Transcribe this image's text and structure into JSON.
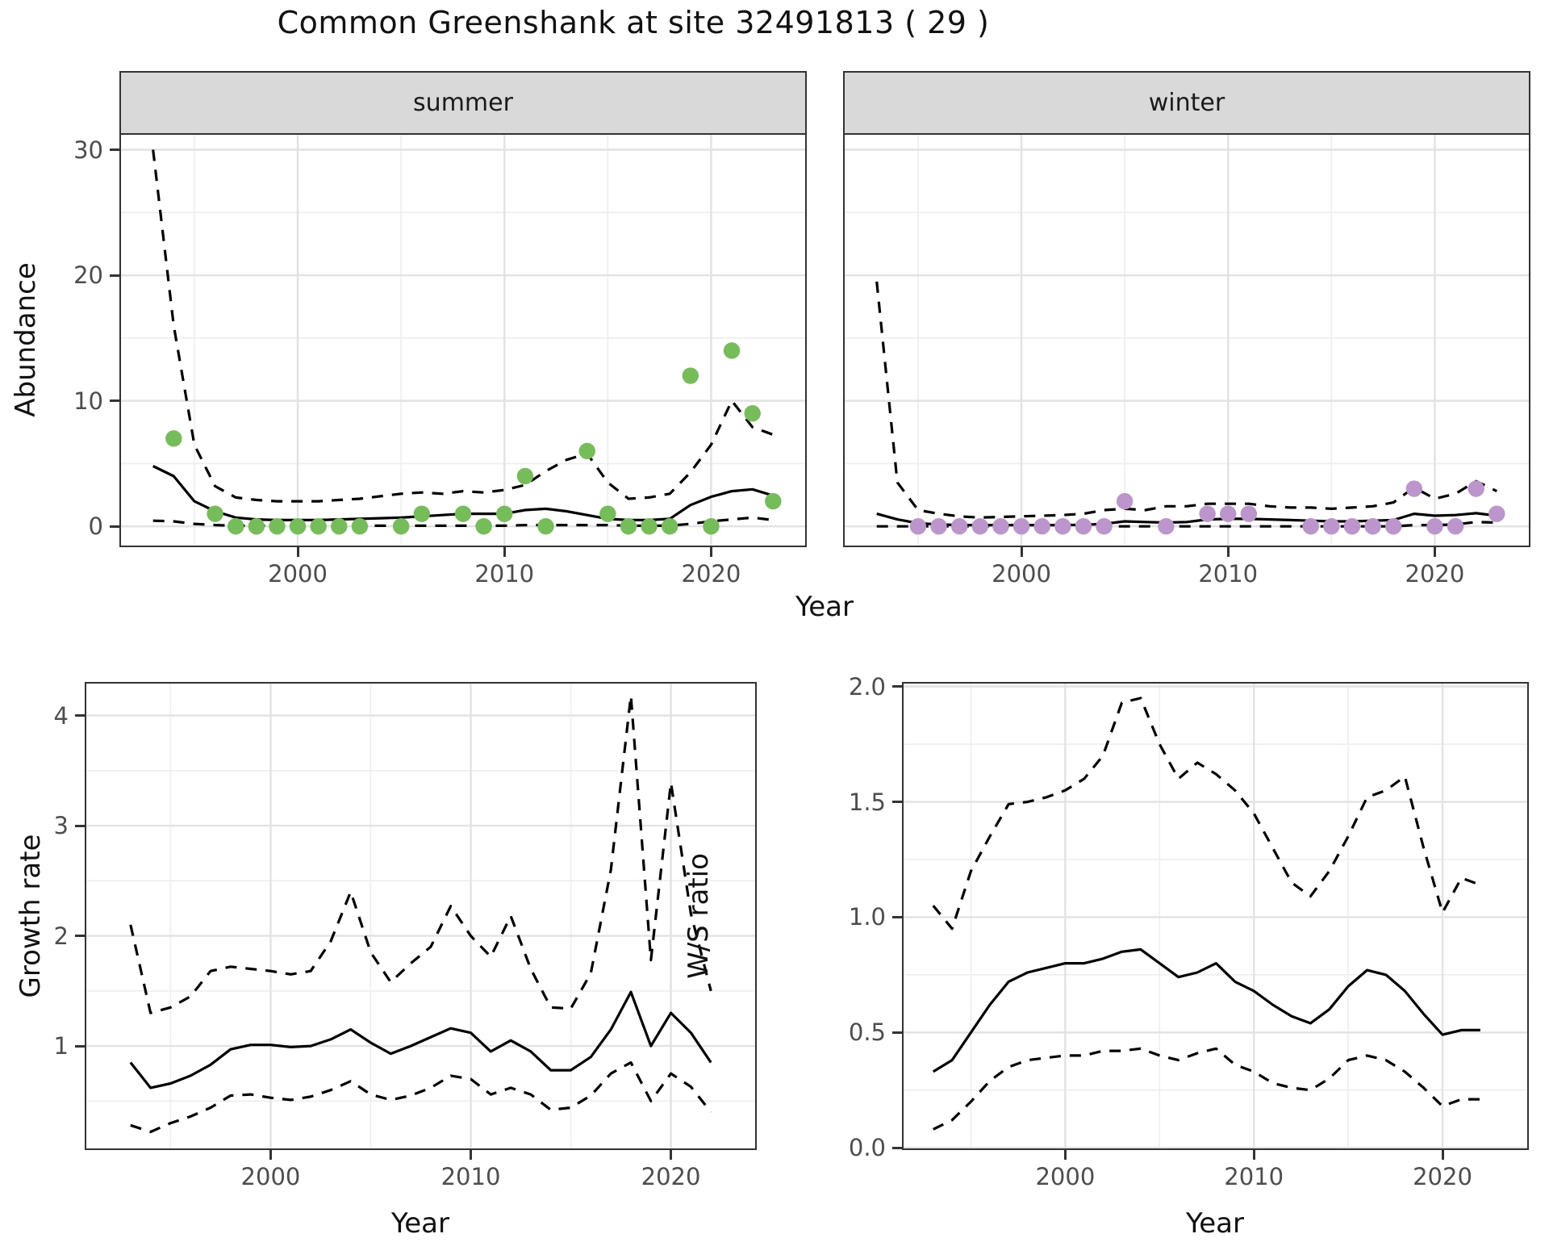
{
  "title": "Common Greenshank at site 32491813 ( 29 )",
  "colors": {
    "summer_point": "#75bd59",
    "winter_point": "#bb95cb",
    "line": "#000000",
    "grid_major": "#e2e2e2",
    "grid_minor": "#eeeeee",
    "strip_bg": "#d9d9d9",
    "panel_border": "#333333",
    "axis_text": "#4d4d4d",
    "title_text": "#111111"
  },
  "top": {
    "ylabel": "Abundance",
    "xlabel": "Year",
    "facets": {
      "summer": "summer",
      "winter": "winter"
    }
  },
  "bottom_left": {
    "ylabel": "Growth rate",
    "xlabel": "Year"
  },
  "bottom_right": {
    "ylabel": "W/S ratio",
    "xlabel": "Year"
  },
  "chart_data": [
    {
      "id": "abundance-summer",
      "type": "line",
      "facet": "summer",
      "xlabel": "Year",
      "ylabel": "Abundance",
      "legend_position": "none",
      "grid": true,
      "xlim": [
        1991.45,
        2024.55
      ],
      "ylim": [
        -1.53,
        31.19
      ],
      "xticks": [
        2000,
        2010,
        2020
      ],
      "xticks_minor": [
        1995,
        2005,
        2015
      ],
      "yticks": [
        0,
        10,
        20,
        30
      ],
      "yticks_minor": [
        5,
        15,
        25
      ],
      "show_y_axis": true,
      "show_x_tick_labels": true,
      "years": [
        1993,
        1994,
        1995,
        1996,
        1997,
        1998,
        1999,
        2000,
        2001,
        2002,
        2003,
        2004,
        2005,
        2006,
        2007,
        2008,
        2009,
        2010,
        2011,
        2012,
        2013,
        2014,
        2015,
        2016,
        2017,
        2018,
        2019,
        2020,
        2021,
        2022,
        2023
      ],
      "series": [
        {
          "name": "mean",
          "style": "solid",
          "values": [
            4.8,
            4.0,
            2.0,
            1.2,
            0.7,
            0.55,
            0.5,
            0.5,
            0.5,
            0.55,
            0.6,
            0.65,
            0.7,
            0.8,
            0.9,
            1.0,
            1.0,
            1.0,
            1.3,
            1.4,
            1.2,
            0.9,
            0.6,
            0.5,
            0.5,
            0.6,
            1.7,
            2.35,
            2.8,
            2.95,
            2.45
          ]
        },
        {
          "name": "upper95",
          "style": "dashed",
          "values": [
            30,
            16,
            6.5,
            3.2,
            2.3,
            2.1,
            2.0,
            2.0,
            2.0,
            2.1,
            2.2,
            2.4,
            2.6,
            2.7,
            2.6,
            2.8,
            2.7,
            2.9,
            3.3,
            4.4,
            5.3,
            5.8,
            3.5,
            2.2,
            2.3,
            2.6,
            4.3,
            6.5,
            10.0,
            7.9,
            7.3
          ]
        },
        {
          "name": "lower95",
          "style": "dashed",
          "values": [
            0.45,
            0.4,
            0.2,
            0.1,
            0.05,
            0.05,
            0.05,
            0.05,
            0.05,
            0.05,
            0.05,
            0.05,
            0.05,
            0.05,
            0.05,
            0.05,
            0.05,
            0.05,
            0.1,
            0.1,
            0.1,
            0.1,
            0.1,
            0.05,
            0.05,
            0.05,
            0.2,
            0.4,
            0.55,
            0.7,
            0.5
          ]
        }
      ],
      "points": {
        "name": "observed-counts-summer",
        "color": "#75bd59",
        "data": [
          [
            1994,
            7
          ],
          [
            1996,
            1
          ],
          [
            1997,
            0
          ],
          [
            1998,
            0
          ],
          [
            1999,
            0
          ],
          [
            2000,
            0
          ],
          [
            2001,
            0
          ],
          [
            2002,
            0
          ],
          [
            2003,
            0
          ],
          [
            2005,
            0
          ],
          [
            2006,
            1
          ],
          [
            2008,
            1
          ],
          [
            2009,
            0
          ],
          [
            2010,
            1
          ],
          [
            2011,
            4
          ],
          [
            2012,
            0
          ],
          [
            2014,
            6
          ],
          [
            2015,
            1
          ],
          [
            2016,
            0
          ],
          [
            2017,
            0
          ],
          [
            2018,
            0
          ],
          [
            2019,
            12
          ],
          [
            2020,
            0
          ],
          [
            2021,
            14
          ],
          [
            2022,
            9
          ],
          [
            2023,
            2
          ]
        ]
      }
    },
    {
      "id": "abundance-winter",
      "type": "line",
      "facet": "winter",
      "xlabel": "Year",
      "ylabel": "Abundance",
      "legend_position": "none",
      "grid": true,
      "xlim": [
        1991.45,
        2024.55
      ],
      "ylim": [
        -1.53,
        31.19
      ],
      "xticks": [
        2000,
        2010,
        2020
      ],
      "xticks_minor": [
        1995,
        2005,
        2015
      ],
      "yticks": [
        0,
        10,
        20,
        30
      ],
      "yticks_minor": [
        5,
        15,
        25
      ],
      "show_y_axis": false,
      "show_x_tick_labels": true,
      "years": [
        1993,
        1994,
        1995,
        1996,
        1997,
        1998,
        1999,
        2000,
        2001,
        2002,
        2003,
        2004,
        2005,
        2006,
        2007,
        2008,
        2009,
        2010,
        2011,
        2012,
        2013,
        2014,
        2015,
        2016,
        2017,
        2018,
        2019,
        2020,
        2021,
        2022,
        2023
      ],
      "series": [
        {
          "name": "mean",
          "style": "solid",
          "values": [
            1.0,
            0.55,
            0.25,
            0.15,
            0.1,
            0.1,
            0.1,
            0.1,
            0.1,
            0.1,
            0.12,
            0.2,
            0.4,
            0.35,
            0.3,
            0.35,
            0.55,
            0.6,
            0.6,
            0.55,
            0.5,
            0.45,
            0.4,
            0.4,
            0.45,
            0.5,
            1.0,
            0.85,
            0.9,
            1.05,
            0.85
          ]
        },
        {
          "name": "upper95",
          "style": "dashed",
          "values": [
            19.5,
            3.5,
            1.3,
            1.0,
            0.8,
            0.7,
            0.75,
            0.8,
            0.85,
            0.9,
            1.0,
            1.3,
            1.4,
            1.3,
            1.6,
            1.6,
            1.8,
            1.8,
            1.8,
            1.6,
            1.5,
            1.5,
            1.4,
            1.5,
            1.6,
            1.9,
            3.1,
            2.2,
            2.6,
            3.6,
            2.8
          ]
        },
        {
          "name": "lower95",
          "style": "dashed",
          "values": [
            0,
            0,
            0,
            0,
            0,
            0,
            0,
            0,
            0,
            0,
            0,
            0,
            0,
            0,
            0,
            0,
            0,
            0,
            0,
            0,
            0,
            0,
            0,
            0,
            0,
            0,
            0.1,
            0.1,
            0.15,
            0.35,
            0.3
          ]
        }
      ],
      "points": {
        "name": "observed-counts-winter",
        "color": "#bb95cb",
        "data": [
          [
            1995,
            0
          ],
          [
            1996,
            0
          ],
          [
            1997,
            0
          ],
          [
            1998,
            0
          ],
          [
            1999,
            0
          ],
          [
            2000,
            0
          ],
          [
            2001,
            0
          ],
          [
            2002,
            0
          ],
          [
            2003,
            0
          ],
          [
            2004,
            0
          ],
          [
            2005,
            2
          ],
          [
            2007,
            0
          ],
          [
            2009,
            1
          ],
          [
            2010,
            1
          ],
          [
            2011,
            1
          ],
          [
            2014,
            0
          ],
          [
            2015,
            0
          ],
          [
            2016,
            0
          ],
          [
            2017,
            0
          ],
          [
            2018,
            0
          ],
          [
            2019,
            3
          ],
          [
            2020,
            0
          ],
          [
            2021,
            0
          ],
          [
            2022,
            3
          ],
          [
            2023,
            1
          ]
        ]
      }
    },
    {
      "id": "growth-rate",
      "type": "line",
      "xlabel": "Year",
      "ylabel": "Growth rate",
      "legend_position": "none",
      "grid": true,
      "xlim": [
        1990.79,
        2024.21
      ],
      "ylim": [
        0.07,
        4.29
      ],
      "xticks": [
        2000,
        2010,
        2020
      ],
      "xticks_minor": [
        1995,
        2005,
        2015
      ],
      "yticks": [
        1,
        2,
        3,
        4
      ],
      "yticks_minor": [
        0.5,
        1.5,
        2.5,
        3.5
      ],
      "show_y_axis": true,
      "show_x_tick_labels": true,
      "years": [
        1993,
        1994,
        1995,
        1996,
        1997,
        1998,
        1999,
        2000,
        2001,
        2002,
        2003,
        2004,
        2005,
        2006,
        2007,
        2008,
        2009,
        2010,
        2011,
        2012,
        2013,
        2014,
        2015,
        2016,
        2017,
        2018,
        2019,
        2020,
        2021,
        2022
      ],
      "series": [
        {
          "name": "mean",
          "style": "solid",
          "values": [
            0.85,
            0.62,
            0.66,
            0.73,
            0.83,
            0.97,
            1.01,
            1.01,
            0.99,
            1.0,
            1.06,
            1.15,
            1.03,
            0.93,
            1.0,
            1.08,
            1.16,
            1.12,
            0.95,
            1.05,
            0.95,
            0.78,
            0.78,
            0.9,
            1.15,
            1.49,
            1.0,
            1.3,
            1.12,
            0.85
          ]
        },
        {
          "name": "upper95",
          "style": "dashed",
          "values": [
            2.1,
            1.3,
            1.35,
            1.45,
            1.68,
            1.72,
            1.7,
            1.68,
            1.65,
            1.68,
            1.95,
            2.4,
            1.85,
            1.58,
            1.75,
            1.9,
            2.27,
            2.0,
            1.81,
            2.18,
            1.7,
            1.35,
            1.34,
            1.66,
            2.6,
            4.18,
            1.78,
            3.39,
            2.2,
            1.5
          ]
        },
        {
          "name": "lower95",
          "style": "dashed",
          "values": [
            0.28,
            0.22,
            0.3,
            0.36,
            0.44,
            0.55,
            0.56,
            0.53,
            0.51,
            0.54,
            0.6,
            0.68,
            0.56,
            0.51,
            0.55,
            0.62,
            0.73,
            0.7,
            0.56,
            0.62,
            0.56,
            0.42,
            0.44,
            0.55,
            0.75,
            0.85,
            0.5,
            0.75,
            0.63,
            0.4
          ]
        }
      ]
    },
    {
      "id": "ws-ratio",
      "type": "line",
      "xlabel": "Year",
      "ylabel": "W/S ratio",
      "legend_position": "none",
      "grid": true,
      "xlim": [
        1991.43,
        2024.49
      ],
      "ylim": [
        -0.003,
        2.013
      ],
      "xticks": [
        2000,
        2010,
        2020
      ],
      "xticks_minor": [
        1995,
        2005,
        2015
      ],
      "yticks": [
        0,
        0.5,
        1,
        1.5,
        2
      ],
      "ytick_labels": [
        "0.0",
        "0.5",
        "1.0",
        "1.5",
        "2.0"
      ],
      "yticks_minor": [
        0.25,
        0.75,
        1.25,
        1.75
      ],
      "show_y_axis": true,
      "show_x_tick_labels": true,
      "years": [
        1993,
        1994,
        1995,
        1996,
        1997,
        1998,
        1999,
        2000,
        2001,
        2002,
        2003,
        2004,
        2005,
        2006,
        2007,
        2008,
        2009,
        2010,
        2011,
        2012,
        2013,
        2014,
        2015,
        2016,
        2017,
        2018,
        2019,
        2020,
        2021,
        2022
      ],
      "series": [
        {
          "name": "mean",
          "style": "solid",
          "values": [
            0.33,
            0.38,
            0.5,
            0.62,
            0.72,
            0.76,
            0.78,
            0.8,
            0.8,
            0.82,
            0.85,
            0.86,
            0.8,
            0.74,
            0.76,
            0.8,
            0.72,
            0.68,
            0.62,
            0.57,
            0.54,
            0.6,
            0.7,
            0.77,
            0.75,
            0.68,
            0.58,
            0.49,
            0.51,
            0.51
          ]
        },
        {
          "name": "upper95",
          "style": "dashed",
          "values": [
            1.05,
            0.95,
            1.2,
            1.35,
            1.49,
            1.5,
            1.52,
            1.55,
            1.6,
            1.7,
            1.93,
            1.95,
            1.75,
            1.6,
            1.67,
            1.62,
            1.55,
            1.45,
            1.3,
            1.15,
            1.09,
            1.2,
            1.35,
            1.52,
            1.55,
            1.61,
            1.3,
            1.02,
            1.17,
            1.14
          ]
        },
        {
          "name": "lower95",
          "style": "dashed",
          "values": [
            0.08,
            0.12,
            0.2,
            0.29,
            0.35,
            0.38,
            0.39,
            0.4,
            0.4,
            0.42,
            0.42,
            0.43,
            0.4,
            0.38,
            0.41,
            0.43,
            0.36,
            0.33,
            0.28,
            0.26,
            0.25,
            0.3,
            0.38,
            0.4,
            0.38,
            0.33,
            0.26,
            0.18,
            0.21,
            0.21
          ]
        }
      ]
    }
  ]
}
